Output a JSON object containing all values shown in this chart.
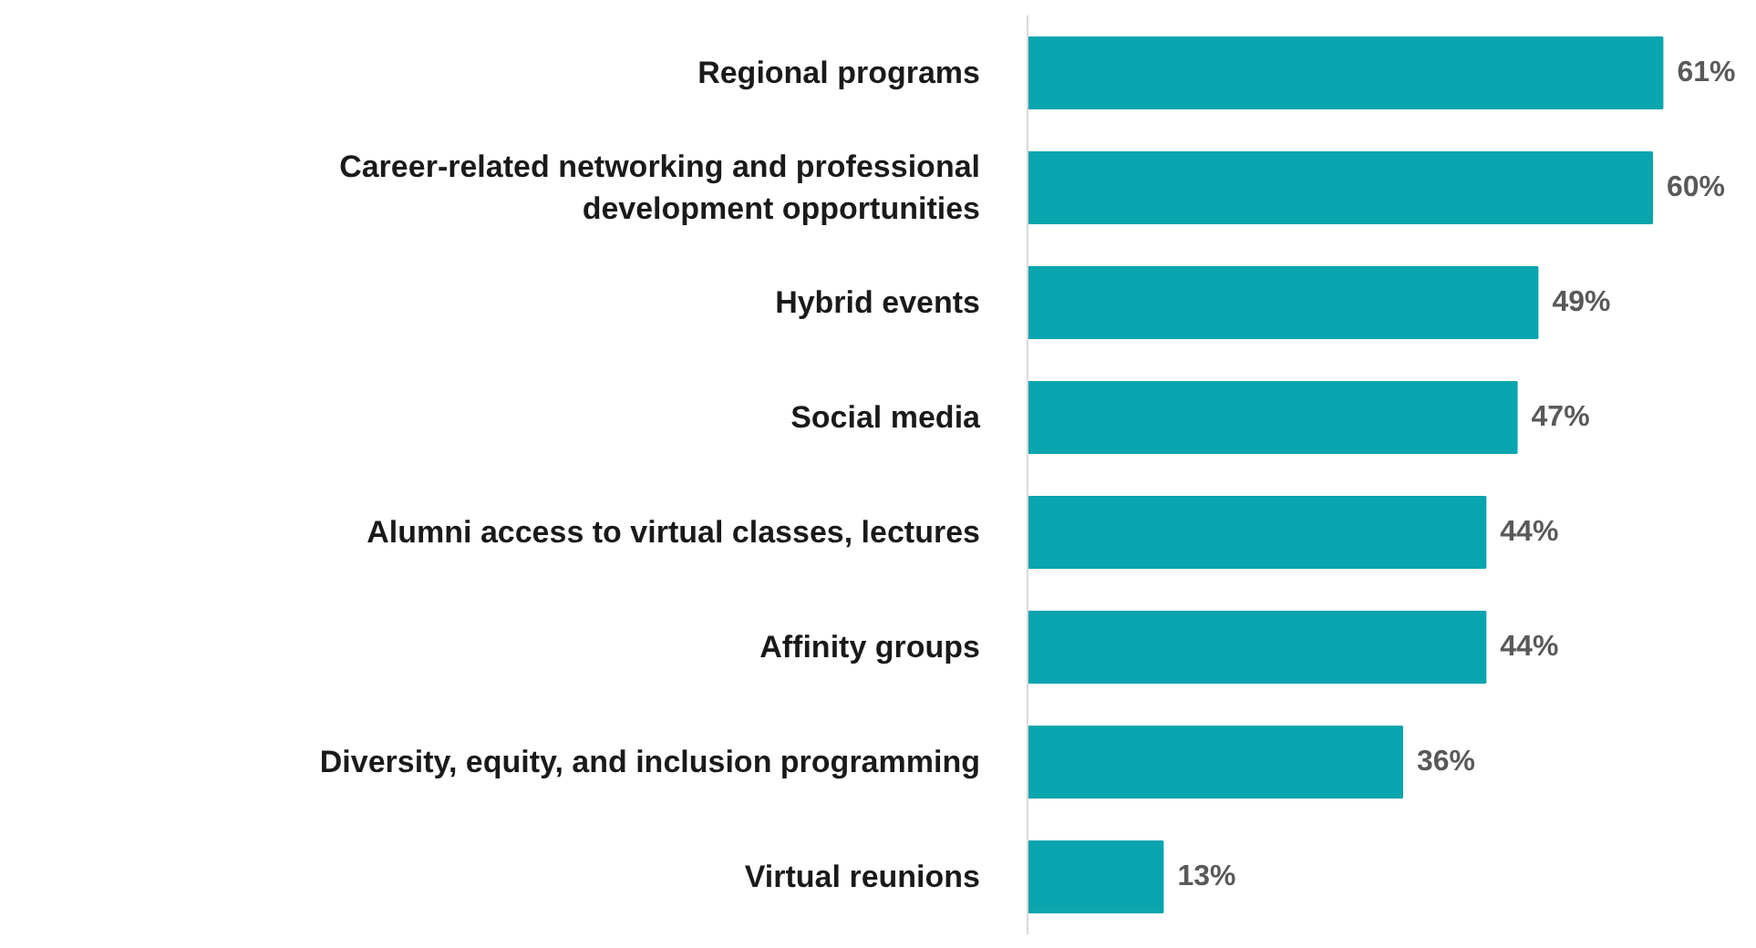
{
  "chart_data": {
    "type": "bar",
    "orientation": "horizontal",
    "categories": [
      "Regional programs",
      "Career-related networking and professional development opportunities",
      "Hybrid events",
      "Social media",
      "Alumni access to virtual classes, lectures",
      "Affinity groups",
      "Diversity, equity, and inclusion programming",
      "Virtual reunions"
    ],
    "values": [
      61,
      60,
      49,
      47,
      44,
      44,
      36,
      13
    ],
    "value_labels": [
      "61%",
      "60%",
      "49%",
      "47%",
      "44%",
      "44%",
      "36%",
      "13%"
    ],
    "color": "#0aa5ae",
    "grid": false
  }
}
